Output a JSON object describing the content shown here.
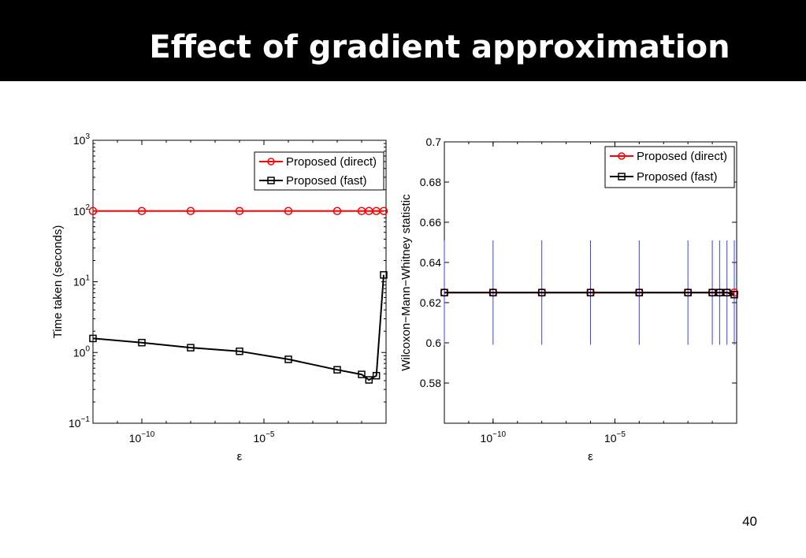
{
  "slide": {
    "title": "Effect of gradient approximation",
    "page_number": "40"
  },
  "colors": {
    "direct": "#ff0000",
    "fast": "#000000",
    "errorbar": "#3344ee"
  },
  "chart_data": [
    {
      "type": "line",
      "title": "",
      "xlabel": "ε",
      "ylabel": "Time taken (seconds)",
      "xscale": "log",
      "yscale": "log",
      "xlim": [
        1e-12,
        1
      ],
      "ylim": [
        0.1,
        1000
      ],
      "xticks": [
        {
          "value": 1e-10,
          "base": "10",
          "exp": "−10"
        },
        {
          "value": 1e-05,
          "base": "10",
          "exp": "−5"
        }
      ],
      "yticks": [
        {
          "value": 0.1,
          "base": "10",
          "exp": "−1"
        },
        {
          "value": 1,
          "base": "10",
          "exp": "0"
        },
        {
          "value": 10,
          "base": "10",
          "exp": "1"
        },
        {
          "value": 100,
          "base": "10",
          "exp": "2"
        },
        {
          "value": 1000,
          "base": "10",
          "exp": "3"
        }
      ],
      "legend_position": "top-right",
      "grid": false,
      "series": [
        {
          "name": "Proposed (direct)",
          "marker": "circle",
          "x": [
            1e-12,
            1e-10,
            1e-08,
            1e-06,
            0.0001,
            0.01,
            0.1,
            0.2,
            0.4,
            0.8
          ],
          "y": [
            100,
            100,
            100,
            100,
            100,
            100,
            100,
            100,
            100,
            100
          ]
        },
        {
          "name": "Proposed (fast)",
          "marker": "square",
          "x": [
            1e-12,
            1e-10,
            1e-08,
            1e-06,
            0.0001,
            0.01,
            0.1,
            0.2,
            0.4,
            0.8
          ],
          "y": [
            1.58,
            1.38,
            1.17,
            1.04,
            0.8,
            0.57,
            0.49,
            0.41,
            0.47,
            12.5
          ]
        }
      ]
    },
    {
      "type": "line",
      "title": "",
      "xlabel": "ε",
      "ylabel": "Wilcoxon−Mann−Whitney statistic",
      "xscale": "log",
      "yscale": "linear",
      "xlim": [
        1e-12,
        1
      ],
      "ylim": [
        0.56,
        0.7
      ],
      "xticks": [
        {
          "value": 1e-10,
          "base": "10",
          "exp": "−10"
        },
        {
          "value": 1e-05,
          "base": "10",
          "exp": "−5"
        }
      ],
      "yticks": [
        {
          "value": 0.58,
          "label": "0.58"
        },
        {
          "value": 0.6,
          "label": "0.6"
        },
        {
          "value": 0.62,
          "label": "0.62"
        },
        {
          "value": 0.64,
          "label": "0.64"
        },
        {
          "value": 0.66,
          "label": "0.66"
        },
        {
          "value": 0.68,
          "label": "0.68"
        },
        {
          "value": 0.7,
          "label": "0.7"
        }
      ],
      "legend_position": "top-right",
      "grid": false,
      "series": [
        {
          "name": "Proposed (direct)",
          "marker": "circle",
          "x": [
            1e-12,
            1e-10,
            1e-08,
            1e-06,
            0.0001,
            0.01,
            0.1,
            0.2,
            0.4,
            0.8
          ],
          "y": [
            0.625,
            0.625,
            0.625,
            0.625,
            0.625,
            0.625,
            0.625,
            0.625,
            0.625,
            0.625
          ],
          "err_low": [
            0.599,
            0.599,
            0.599,
            0.599,
            0.599,
            0.599,
            0.599,
            0.599,
            0.599,
            0.599
          ],
          "err_high": [
            0.651,
            0.651,
            0.651,
            0.651,
            0.651,
            0.651,
            0.651,
            0.651,
            0.651,
            0.651
          ]
        },
        {
          "name": "Proposed (fast)",
          "marker": "square",
          "x": [
            1e-12,
            1e-10,
            1e-08,
            1e-06,
            0.0001,
            0.01,
            0.1,
            0.2,
            0.4,
            0.8
          ],
          "y": [
            0.625,
            0.625,
            0.625,
            0.625,
            0.625,
            0.625,
            0.625,
            0.625,
            0.625,
            0.624
          ]
        }
      ]
    }
  ]
}
